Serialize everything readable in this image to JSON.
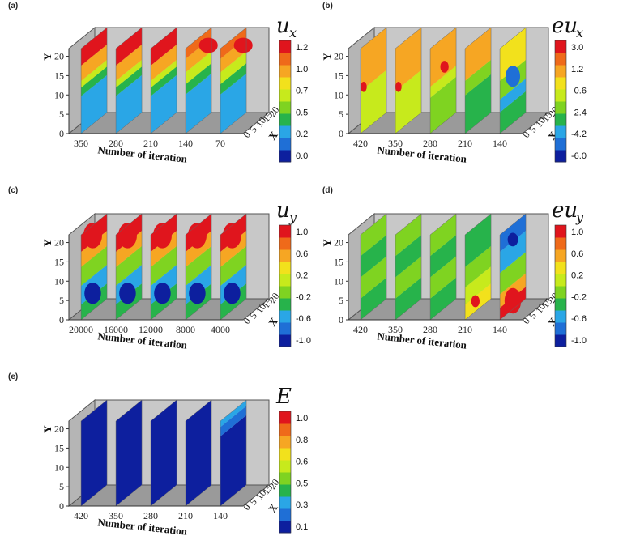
{
  "colormap": [
    "#0d1f9e",
    "#1f6fd6",
    "#2aa6e6",
    "#27b34b",
    "#7fd321",
    "#c7ea1c",
    "#f2e11c",
    "#f6a623",
    "#ef6a1a",
    "#e0151d"
  ],
  "chart_data": [
    {
      "panel": "(a)",
      "type": "heatmap",
      "subtype": "3D slice contour",
      "cb_symbol": "u",
      "cb_subscript": "x",
      "cb_ticks": [
        "1.2",
        "1.0",
        "0.7",
        "0.5",
        "0.2",
        "0.0"
      ],
      "ylabel": "Y",
      "y_ticks": [
        "20",
        "15",
        "10",
        "5",
        "0"
      ],
      "ylim": [
        0,
        22
      ],
      "xlabel": "Number of iteration",
      "x_ticks": [
        "350",
        "280",
        "210",
        "140",
        "70"
      ],
      "zlabel": "X",
      "z_ticks": [
        "0",
        "5",
        "10",
        "15",
        "20"
      ],
      "slices": [
        "ux_a",
        "ux_a",
        "ux_a",
        "ux_b",
        "ux_b"
      ]
    },
    {
      "panel": "(b)",
      "type": "heatmap",
      "subtype": "3D slice contour",
      "cb_symbol": "eu",
      "cb_subscript": "x",
      "cb_ticks": [
        "3.0",
        "1.2",
        "-0.6",
        "-2.4",
        "-4.2",
        "-6.0"
      ],
      "ylabel": "Y",
      "y_ticks": [
        "20",
        "15",
        "10",
        "5",
        "0"
      ],
      "ylim": [
        0,
        22
      ],
      "xlabel": "Number of iteration",
      "x_ticks": [
        "420",
        "350",
        "280",
        "210",
        "140"
      ],
      "zlabel": "X",
      "z_ticks": [
        "0",
        "5",
        "10",
        "15",
        "20"
      ],
      "slices": [
        "eux_a",
        "eux_a",
        "eux_b",
        "eux_c",
        "eux_d"
      ]
    },
    {
      "panel": "(c)",
      "type": "heatmap",
      "subtype": "3D slice contour",
      "cb_symbol": "u",
      "cb_subscript": "y",
      "cb_ticks": [
        "1.0",
        "0.6",
        "0.2",
        "-0.2",
        "-0.6",
        "-1.0"
      ],
      "ylabel": "Y",
      "y_ticks": [
        "20",
        "15",
        "10",
        "5",
        "0"
      ],
      "ylim": [
        0,
        22
      ],
      "xlabel": "Number of iteration",
      "x_ticks": [
        "20000",
        "16000",
        "12000",
        "8000",
        "4000"
      ],
      "zlabel": "X",
      "z_ticks": [
        "0",
        "5",
        "10",
        "15",
        "20"
      ],
      "slices": [
        "uy",
        "uy",
        "uy",
        "uy",
        "uy"
      ]
    },
    {
      "panel": "(d)",
      "type": "heatmap",
      "subtype": "3D slice contour",
      "cb_symbol": "eu",
      "cb_subscript": "y",
      "cb_ticks": [
        "1.0",
        "0.6",
        "0.2",
        "-0.2",
        "-0.6",
        "-1.0"
      ],
      "ylabel": "Y",
      "y_ticks": [
        "20",
        "15",
        "10",
        "5",
        "0"
      ],
      "ylim": [
        0,
        22
      ],
      "xlabel": "Number of iteration",
      "x_ticks": [
        "420",
        "350",
        "280",
        "210",
        "140"
      ],
      "zlabel": "X",
      "z_ticks": [
        "0",
        "5",
        "10",
        "15",
        "20"
      ],
      "slices": [
        "euy_a",
        "euy_a",
        "euy_a",
        "euy_b",
        "euy_c"
      ]
    },
    {
      "panel": "(e)",
      "type": "heatmap",
      "subtype": "3D slice contour",
      "cb_symbol": "E",
      "cb_subscript": "",
      "cb_ticks": [
        "1.0",
        "0.8",
        "0.6",
        "0.5",
        "0.3",
        "0.1"
      ],
      "ylabel": "Y",
      "y_ticks": [
        "20",
        "15",
        "10",
        "5",
        "0"
      ],
      "ylim": [
        0,
        22
      ],
      "xlabel": "Number of iteration",
      "x_ticks": [
        "420",
        "350",
        "280",
        "210",
        "140"
      ],
      "zlabel": "X",
      "z_ticks": [
        "0",
        "5",
        "10",
        "15",
        "20"
      ],
      "slices": [
        "e",
        "e",
        "e",
        "e",
        "e_last"
      ]
    }
  ]
}
